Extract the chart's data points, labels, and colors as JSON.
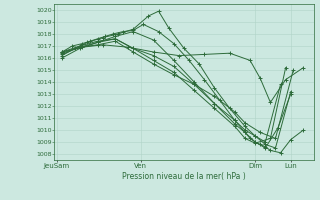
{
  "title": "Pression niveau de la mer( hPa )",
  "ylabel_values": [
    1008,
    1009,
    1010,
    1011,
    1012,
    1013,
    1014,
    1015,
    1016,
    1017,
    1018,
    1019,
    1020
  ],
  "x_ticks_labels": [
    "JeuSam",
    "Ven",
    "Dim",
    "Lun"
  ],
  "x_ticks_positions": [
    0.0,
    0.33,
    0.78,
    0.92
  ],
  "ylim": [
    1007.5,
    1020.5
  ],
  "xlim": [
    -0.01,
    1.01
  ],
  "bg_color": "#cce8e0",
  "grid_color": "#b0d4c8",
  "line_color": "#2d6b3a",
  "line_width": 0.7,
  "marker": "+",
  "markersize": 2.5,
  "markeredgewidth": 0.7,
  "series": [
    {
      "x": [
        0.02,
        0.06,
        0.1,
        0.13,
        0.16,
        0.19,
        0.22,
        0.26,
        0.3,
        0.34,
        0.4,
        0.46,
        0.52,
        0.58,
        0.64,
        0.7,
        0.74,
        0.76,
        0.78,
        0.8,
        0.82,
        0.84,
        0.88,
        0.92,
        0.97
      ],
      "y": [
        1016.5,
        1017.0,
        1017.2,
        1017.4,
        1017.6,
        1017.8,
        1018.0,
        1018.2,
        1018.3,
        1018.8,
        1018.2,
        1017.2,
        1015.8,
        1014.2,
        1012.5,
        1010.8,
        1009.8,
        1009.3,
        1009.0,
        1008.8,
        1008.6,
        1008.3,
        1008.1,
        1009.2,
        1010.0
      ]
    },
    {
      "x": [
        0.02,
        0.07,
        0.12,
        0.18,
        0.24,
        0.3,
        0.36,
        0.4,
        0.44,
        0.5,
        0.56,
        0.62,
        0.68,
        0.74,
        0.78,
        0.82,
        0.86,
        0.92
      ],
      "y": [
        1016.2,
        1016.8,
        1017.3,
        1017.7,
        1018.0,
        1018.4,
        1019.5,
        1019.9,
        1018.5,
        1016.8,
        1015.5,
        1013.5,
        1011.8,
        1010.3,
        1009.5,
        1008.8,
        1008.5,
        1013.2
      ]
    },
    {
      "x": [
        0.02,
        0.09,
        0.16,
        0.23,
        0.3,
        0.38,
        0.46,
        0.54,
        0.62,
        0.7,
        0.74,
        0.78,
        0.82,
        0.87,
        0.92
      ],
      "y": [
        1016.0,
        1016.8,
        1017.3,
        1017.8,
        1018.2,
        1017.5,
        1015.8,
        1014.0,
        1012.2,
        1010.5,
        1009.8,
        1009.0,
        1008.5,
        1010.2,
        1013.0
      ]
    },
    {
      "x": [
        0.02,
        0.09,
        0.16,
        0.23,
        0.3,
        0.38,
        0.46,
        0.54,
        0.62,
        0.7,
        0.74,
        0.78,
        0.82,
        0.88
      ],
      "y": [
        1016.3,
        1016.9,
        1017.3,
        1017.6,
        1016.8,
        1016.2,
        1015.3,
        1013.8,
        1012.2,
        1010.8,
        1010.0,
        1009.5,
        1009.0,
        1013.8
      ]
    },
    {
      "x": [
        0.02,
        0.09,
        0.16,
        0.23,
        0.3,
        0.38,
        0.46,
        0.54,
        0.62,
        0.7,
        0.74,
        0.78,
        0.84,
        0.9
      ],
      "y": [
        1016.5,
        1017.0,
        1017.4,
        1017.6,
        1016.8,
        1015.8,
        1014.8,
        1013.3,
        1011.8,
        1010.3,
        1009.3,
        1008.9,
        1009.3,
        1015.2
      ]
    },
    {
      "x": [
        0.02,
        0.09,
        0.16,
        0.23,
        0.3,
        0.38,
        0.46,
        0.54,
        0.62,
        0.7,
        0.74,
        0.8,
        0.86,
        0.93
      ],
      "y": [
        1016.4,
        1016.9,
        1017.1,
        1017.4,
        1016.5,
        1015.5,
        1014.6,
        1013.8,
        1012.8,
        1011.5,
        1010.6,
        1009.8,
        1009.3,
        1015.0
      ]
    },
    {
      "x": [
        0.02,
        0.1,
        0.18,
        0.28,
        0.38,
        0.48,
        0.58,
        0.68,
        0.76,
        0.8,
        0.84,
        0.9,
        0.97
      ],
      "y": [
        1016.5,
        1016.9,
        1017.1,
        1016.9,
        1016.5,
        1016.2,
        1016.3,
        1016.4,
        1015.8,
        1014.3,
        1012.3,
        1014.2,
        1015.2
      ]
    }
  ]
}
